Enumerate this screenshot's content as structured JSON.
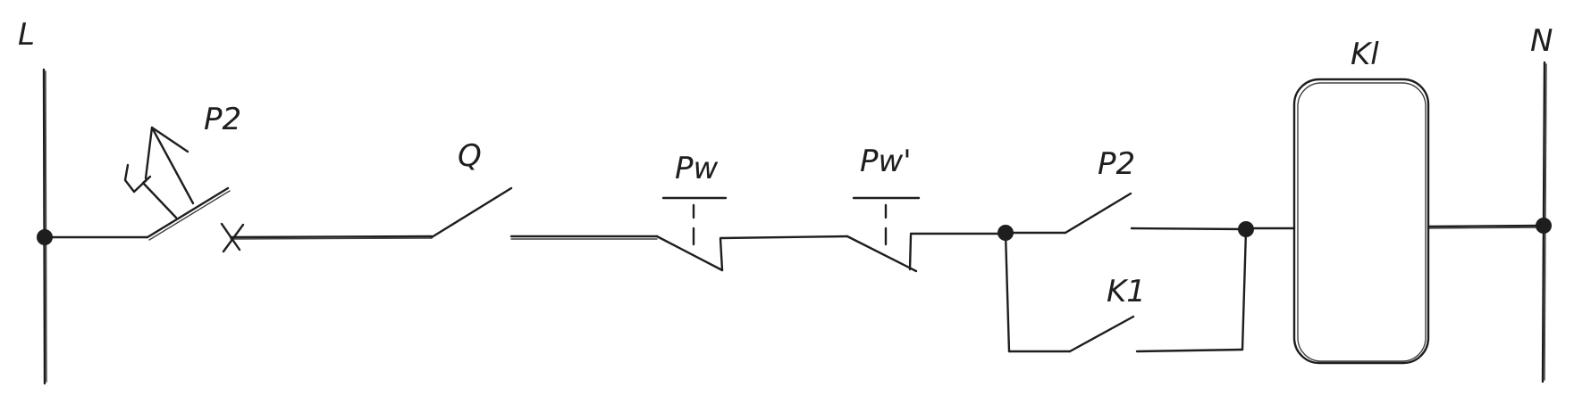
{
  "labels": {
    "line": "L",
    "neutral": "N",
    "p2_top": "P2",
    "breaker": "Q",
    "pw": "Pw",
    "pw_prime": "Pw'",
    "p2_switch": "P2",
    "k1_contact": "K1",
    "coil": "Kl"
  },
  "colors": {
    "ink": "#1e1e1e",
    "background": "#ffffff"
  }
}
